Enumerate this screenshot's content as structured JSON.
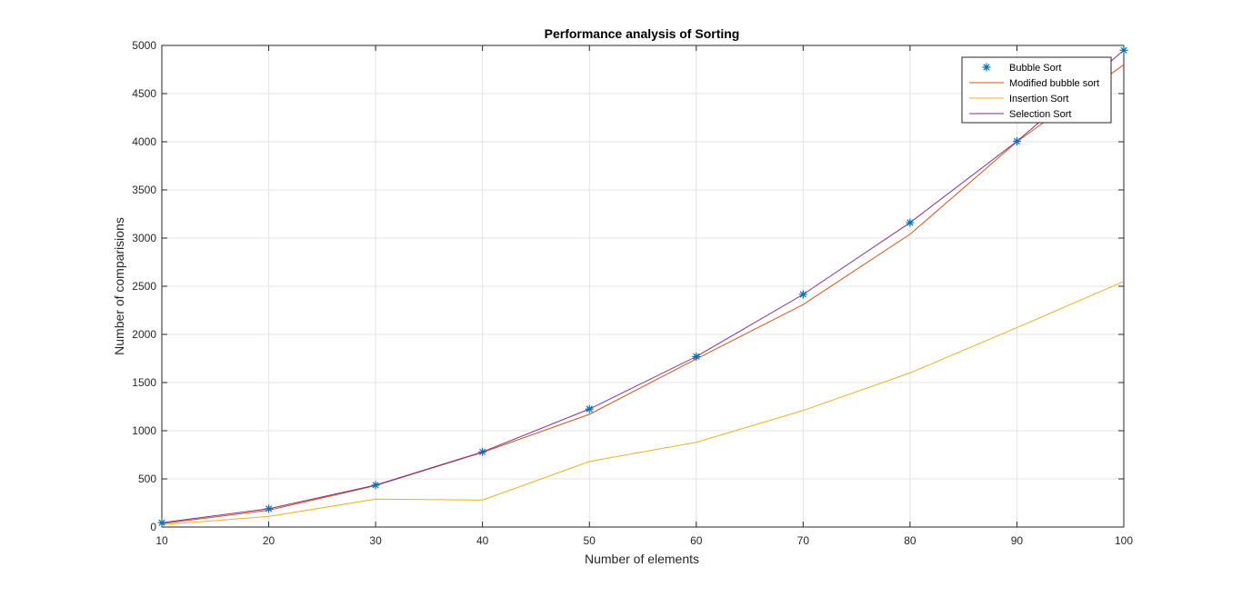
{
  "chart_data": {
    "type": "line",
    "title": "Performance analysis of Sorting",
    "xlabel": "Number of elements",
    "ylabel": "Number of comparisions",
    "xlim": [
      10,
      100
    ],
    "ylim": [
      0,
      5000
    ],
    "x_ticks": [
      10,
      20,
      30,
      40,
      50,
      60,
      70,
      80,
      90,
      100
    ],
    "y_ticks": [
      0,
      500,
      1000,
      1500,
      2000,
      2500,
      3000,
      3500,
      4000,
      4500,
      5000
    ],
    "grid": true,
    "legend_position": "top-right",
    "x": [
      10,
      20,
      30,
      40,
      50,
      60,
      70,
      80,
      90,
      100
    ],
    "series": [
      {
        "name": "Bubble Sort",
        "style": "marker",
        "marker": "*",
        "color": "#0072BD",
        "values": [
          45,
          190,
          435,
          780,
          1225,
          1770,
          2415,
          3160,
          4005,
          4950
        ]
      },
      {
        "name": "Modified bubble sort",
        "style": "line",
        "color": "#D95319",
        "values": [
          35,
          175,
          430,
          775,
          1170,
          1745,
          2310,
          3040,
          4000,
          4800
        ]
      },
      {
        "name": "Insertion Sort",
        "style": "line",
        "color": "#EDB120",
        "values": [
          25,
          110,
          290,
          280,
          680,
          880,
          1210,
          1600,
          2070,
          2550
        ]
      },
      {
        "name": "Selection Sort",
        "style": "line",
        "color": "#7E2F8E",
        "values": [
          45,
          190,
          435,
          780,
          1225,
          1770,
          2415,
          3160,
          4005,
          4950
        ]
      }
    ]
  }
}
